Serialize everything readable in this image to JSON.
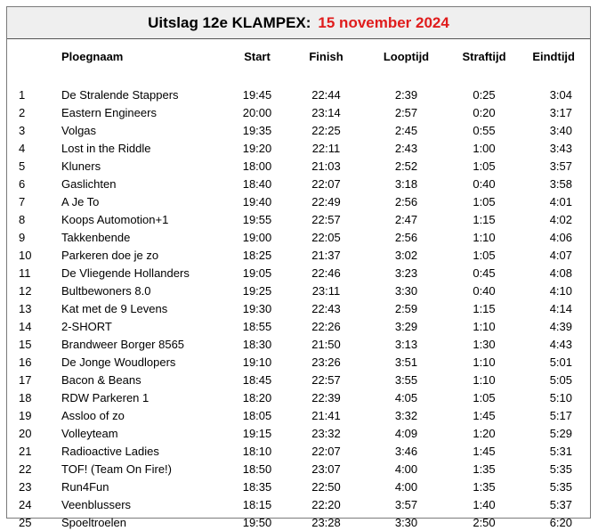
{
  "title": {
    "main": "Uitslag 12e KLAMPEX:",
    "date": "15 november 2024"
  },
  "columns": {
    "name": "Ploegnaam",
    "start": "Start",
    "finish": "Finish",
    "looptijd": "Looptijd",
    "straftijd": "Straftijd",
    "eindtijd": "Eindtijd"
  },
  "colors": {
    "accent": "#e01c1c",
    "header_bg": "#efefef"
  },
  "rows": [
    {
      "rank": "1",
      "name": "De Stralende Stappers",
      "start": "19:45",
      "finish": "22:44",
      "looptijd": "2:39",
      "straftijd": "0:25",
      "eindtijd": "3:04"
    },
    {
      "rank": "2",
      "name": "Eastern Engineers",
      "start": "20:00",
      "finish": "23:14",
      "looptijd": "2:57",
      "straftijd": "0:20",
      "eindtijd": "3:17"
    },
    {
      "rank": "3",
      "name": "Volgas",
      "start": "19:35",
      "finish": "22:25",
      "looptijd": "2:45",
      "straftijd": "0:55",
      "eindtijd": "3:40"
    },
    {
      "rank": "4",
      "name": "Lost in the Riddle",
      "start": "19:20",
      "finish": "22:11",
      "looptijd": "2:43",
      "straftijd": "1:00",
      "eindtijd": "3:43"
    },
    {
      "rank": "5",
      "name": "Kluners",
      "start": "18:00",
      "finish": "21:03",
      "looptijd": "2:52",
      "straftijd": "1:05",
      "eindtijd": "3:57"
    },
    {
      "rank": "6",
      "name": "Gaslichten",
      "start": "18:40",
      "finish": "22:07",
      "looptijd": "3:18",
      "straftijd": "0:40",
      "eindtijd": "3:58"
    },
    {
      "rank": "7",
      "name": "A Je To",
      "start": "19:40",
      "finish": "22:49",
      "looptijd": "2:56",
      "straftijd": "1:05",
      "eindtijd": "4:01"
    },
    {
      "rank": "8",
      "name": "Koops Automotion+1",
      "start": "19:55",
      "finish": "22:57",
      "looptijd": "2:47",
      "straftijd": "1:15",
      "eindtijd": "4:02"
    },
    {
      "rank": "9",
      "name": "Takkenbende",
      "start": "19:00",
      "finish": "22:05",
      "looptijd": "2:56",
      "straftijd": "1:10",
      "eindtijd": "4:06"
    },
    {
      "rank": "10",
      "name": "Parkeren doe je zo",
      "start": "18:25",
      "finish": "21:37",
      "looptijd": "3:02",
      "straftijd": "1:05",
      "eindtijd": "4:07"
    },
    {
      "rank": "11",
      "name": "De Vliegende Hollanders",
      "start": "19:05",
      "finish": "22:46",
      "looptijd": "3:23",
      "straftijd": "0:45",
      "eindtijd": "4:08"
    },
    {
      "rank": "12",
      "name": "Bultbewoners 8.0",
      "start": "19:25",
      "finish": "23:11",
      "looptijd": "3:30",
      "straftijd": "0:40",
      "eindtijd": "4:10"
    },
    {
      "rank": "13",
      "name": "Kat met de 9 Levens",
      "start": "19:30",
      "finish": "22:43",
      "looptijd": "2:59",
      "straftijd": "1:15",
      "eindtijd": "4:14"
    },
    {
      "rank": "14",
      "name": "2-SHORT",
      "start": "18:55",
      "finish": "22:26",
      "looptijd": "3:29",
      "straftijd": "1:10",
      "eindtijd": "4:39"
    },
    {
      "rank": "15",
      "name": "Brandweer Borger 8565",
      "start": "18:30",
      "finish": "21:50",
      "looptijd": "3:13",
      "straftijd": "1:30",
      "eindtijd": "4:43"
    },
    {
      "rank": "16",
      "name": "De Jonge Woudlopers",
      "start": "19:10",
      "finish": "23:26",
      "looptijd": "3:51",
      "straftijd": "1:10",
      "eindtijd": "5:01"
    },
    {
      "rank": "17",
      "name": "Bacon & Beans",
      "start": "18:45",
      "finish": "22:57",
      "looptijd": "3:55",
      "straftijd": "1:10",
      "eindtijd": "5:05"
    },
    {
      "rank": "18",
      "name": "RDW Parkeren 1",
      "start": "18:20",
      "finish": "22:39",
      "looptijd": "4:05",
      "straftijd": "1:05",
      "eindtijd": "5:10"
    },
    {
      "rank": "19",
      "name": "Assloo of zo",
      "start": "18:05",
      "finish": "21:41",
      "looptijd": "3:32",
      "straftijd": "1:45",
      "eindtijd": "5:17"
    },
    {
      "rank": "20",
      "name": "Volleyteam",
      "start": "19:15",
      "finish": "23:32",
      "looptijd": "4:09",
      "straftijd": "1:20",
      "eindtijd": "5:29"
    },
    {
      "rank": "21",
      "name": "Radioactive Ladies",
      "start": "18:10",
      "finish": "22:07",
      "looptijd": "3:46",
      "straftijd": "1:45",
      "eindtijd": "5:31"
    },
    {
      "rank": "22",
      "name": "TOF! (Team On Fire!)",
      "start": "18:50",
      "finish": "23:07",
      "looptijd": "4:00",
      "straftijd": "1:35",
      "eindtijd": "5:35"
    },
    {
      "rank": "23",
      "name": "Run4Fun",
      "start": "18:35",
      "finish": "22:50",
      "looptijd": "4:00",
      "straftijd": "1:35",
      "eindtijd": "5:35"
    },
    {
      "rank": "24",
      "name": "Veenblussers",
      "start": "18:15",
      "finish": "22:20",
      "looptijd": "3:57",
      "straftijd": "1:40",
      "eindtijd": "5:37"
    },
    {
      "rank": "25",
      "name": "Spoeltroelen",
      "start": "19:50",
      "finish": "23:28",
      "looptijd": "3:30",
      "straftijd": "2:50",
      "eindtijd": "6:20"
    }
  ]
}
